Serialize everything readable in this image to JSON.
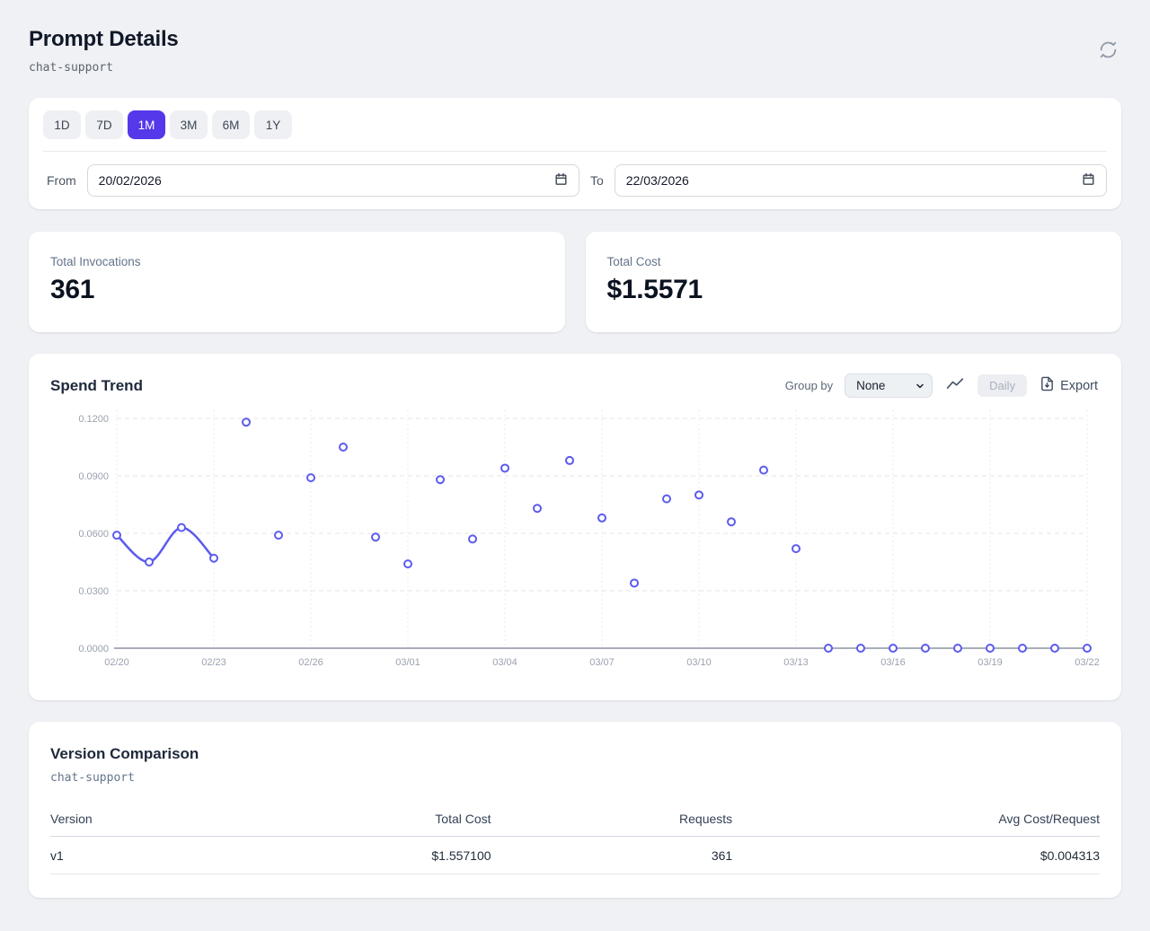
{
  "colors": {
    "accent": "#5438e9",
    "chart_point": "#5b5bf0",
    "axis_line": "#a9aeb9"
  },
  "header": {
    "title": "Prompt Details",
    "subtitle": "chat-support"
  },
  "filters": {
    "ranges": [
      {
        "label": "1D",
        "active": false
      },
      {
        "label": "7D",
        "active": false
      },
      {
        "label": "1M",
        "active": true
      },
      {
        "label": "3M",
        "active": false
      },
      {
        "label": "6M",
        "active": false
      },
      {
        "label": "1Y",
        "active": false
      }
    ],
    "from_label": "From",
    "from_value": "20/02/2026",
    "to_label": "To",
    "to_value": "22/03/2026"
  },
  "stats": {
    "invocations": {
      "label": "Total Invocations",
      "value": "361"
    },
    "cost": {
      "label": "Total Cost",
      "value": "$1.5571"
    }
  },
  "spend_trend": {
    "title": "Spend Trend",
    "group_by_label": "Group by",
    "group_by_value": "None",
    "daily_label": "Daily",
    "export_label": "Export"
  },
  "chart_data": {
    "type": "line",
    "title": "Spend Trend",
    "xlabel": "",
    "ylabel": "",
    "x": [
      "02/20",
      "02/21",
      "02/22",
      "02/23",
      "02/24",
      "02/25",
      "02/26",
      "02/27",
      "02/28",
      "03/01",
      "03/02",
      "03/03",
      "03/04",
      "03/05",
      "03/06",
      "03/07",
      "03/08",
      "03/09",
      "03/10",
      "03/11",
      "03/12",
      "03/13",
      "03/14",
      "03/15",
      "03/16",
      "03/17",
      "03/18",
      "03/19",
      "03/20",
      "03/21",
      "03/22"
    ],
    "values": [
      0.059,
      0.045,
      0.063,
      0.047,
      0.118,
      0.059,
      0.089,
      0.105,
      0.058,
      0.044,
      0.088,
      0.057,
      0.094,
      0.073,
      0.098,
      0.068,
      0.034,
      0.078,
      0.08,
      0.066,
      0.093,
      0.052,
      0,
      0,
      0,
      0,
      0,
      0,
      0,
      0,
      0
    ],
    "x_tick_labels": [
      "02/20",
      "02/23",
      "02/26",
      "03/01",
      "03/04",
      "03/07",
      "03/10",
      "03/13",
      "03/16",
      "03/19",
      "03/22"
    ],
    "y_ticks": [
      0.0,
      0.03,
      0.06,
      0.09,
      0.12
    ],
    "ylim": [
      0,
      0.12
    ],
    "grid": true,
    "legend": false,
    "marker_style": "open-circle",
    "line_connects_first_n_points": 4
  },
  "version_comparison": {
    "title": "Version Comparison",
    "subtitle": "chat-support",
    "columns": [
      "Version",
      "Total Cost",
      "Requests",
      "Avg Cost/Request"
    ],
    "rows": [
      [
        "v1",
        "$1.557100",
        "361",
        "$0.004313"
      ]
    ]
  }
}
